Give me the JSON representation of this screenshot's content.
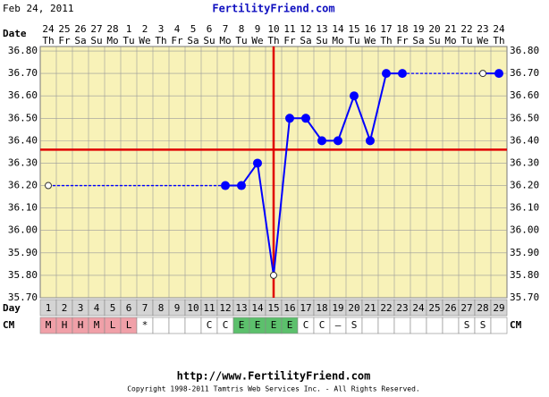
{
  "header": {
    "date": "Feb 24, 2011",
    "site": "FertilityFriend.com"
  },
  "chart_data": {
    "type": "line",
    "date_label": "Date",
    "dates": [
      24,
      25,
      26,
      27,
      28,
      1,
      2,
      3,
      4,
      5,
      6,
      7,
      8,
      9,
      10,
      11,
      12,
      13,
      14,
      15,
      16,
      17,
      18,
      19,
      20,
      21,
      22,
      23,
      24
    ],
    "weekdays": [
      "Th",
      "Fr",
      "Sa",
      "Su",
      "Mo",
      "Tu",
      "We",
      "Th",
      "Fr",
      "Sa",
      "Su",
      "Mo",
      "Tu",
      "We",
      "Th",
      "Fr",
      "Sa",
      "Su",
      "Mo",
      "Tu",
      "We",
      "Th",
      "Fr",
      "Sa",
      "Su",
      "Mo",
      "Tu",
      "We",
      "Th"
    ],
    "day_label": "Day",
    "days": [
      1,
      2,
      3,
      4,
      5,
      6,
      7,
      8,
      9,
      10,
      11,
      12,
      13,
      14,
      15,
      16,
      17,
      18,
      19,
      20,
      21,
      22,
      23,
      24,
      25,
      26,
      27,
      28,
      29
    ],
    "cm_label": "CM",
    "cm": [
      "M",
      "H",
      "H",
      "M",
      "L",
      "L",
      "*",
      null,
      null,
      null,
      "C",
      "C",
      "E",
      "E",
      "E",
      "E",
      "C",
      "C",
      "–",
      "S",
      null,
      null,
      null,
      null,
      null,
      null,
      "S",
      "S",
      null
    ],
    "cm_fill": {
      "M": "#f0a0a8",
      "H": "#f0a0a8",
      "L": "#f0a0a8",
      "E": "#5cc06c"
    },
    "values": [
      36.2,
      null,
      null,
      null,
      null,
      null,
      null,
      null,
      null,
      null,
      null,
      36.2,
      36.2,
      36.3,
      35.8,
      36.5,
      36.5,
      36.4,
      36.4,
      36.6,
      36.4,
      36.7,
      36.7,
      null,
      null,
      null,
      null,
      36.7,
      36.7
    ],
    "markers": [
      "open",
      null,
      null,
      null,
      null,
      null,
      null,
      null,
      null,
      null,
      null,
      "filled",
      "filled",
      "filled",
      "open",
      "filled",
      "filled",
      "filled",
      "filled",
      "filled",
      "filled",
      "filled",
      "filled",
      null,
      null,
      null,
      null,
      "open",
      "filled"
    ],
    "color": "#0000ff",
    "coverline": 36.36,
    "ovulation_day": 15,
    "marker_line_color": "#e00000",
    "ylim": [
      35.7,
      36.82
    ],
    "yticks": [
      {
        "value": 36.8,
        "label": "36.80"
      },
      {
        "value": 36.7,
        "label": "36.70"
      },
      {
        "value": 36.6,
        "label": "36.60"
      },
      {
        "value": 36.5,
        "label": "36.50"
      },
      {
        "value": 36.4,
        "label": "36.40"
      },
      {
        "value": 36.3,
        "label": "36.30"
      },
      {
        "value": 36.2,
        "label": "36.20"
      },
      {
        "value": 36.1,
        "label": "36.10"
      },
      {
        "value": 36.0,
        "label": "36.00"
      },
      {
        "value": 35.9,
        "label": "35.90"
      },
      {
        "value": 35.8,
        "label": "35.80"
      },
      {
        "value": 35.7,
        "label": "35.70"
      }
    ],
    "grid": true
  },
  "footer": {
    "url": "http://www.FertilityFriend.com",
    "copyright": "Copyright 1998-2011 Tamtris Web Services Inc. - All Rights Reserved."
  }
}
